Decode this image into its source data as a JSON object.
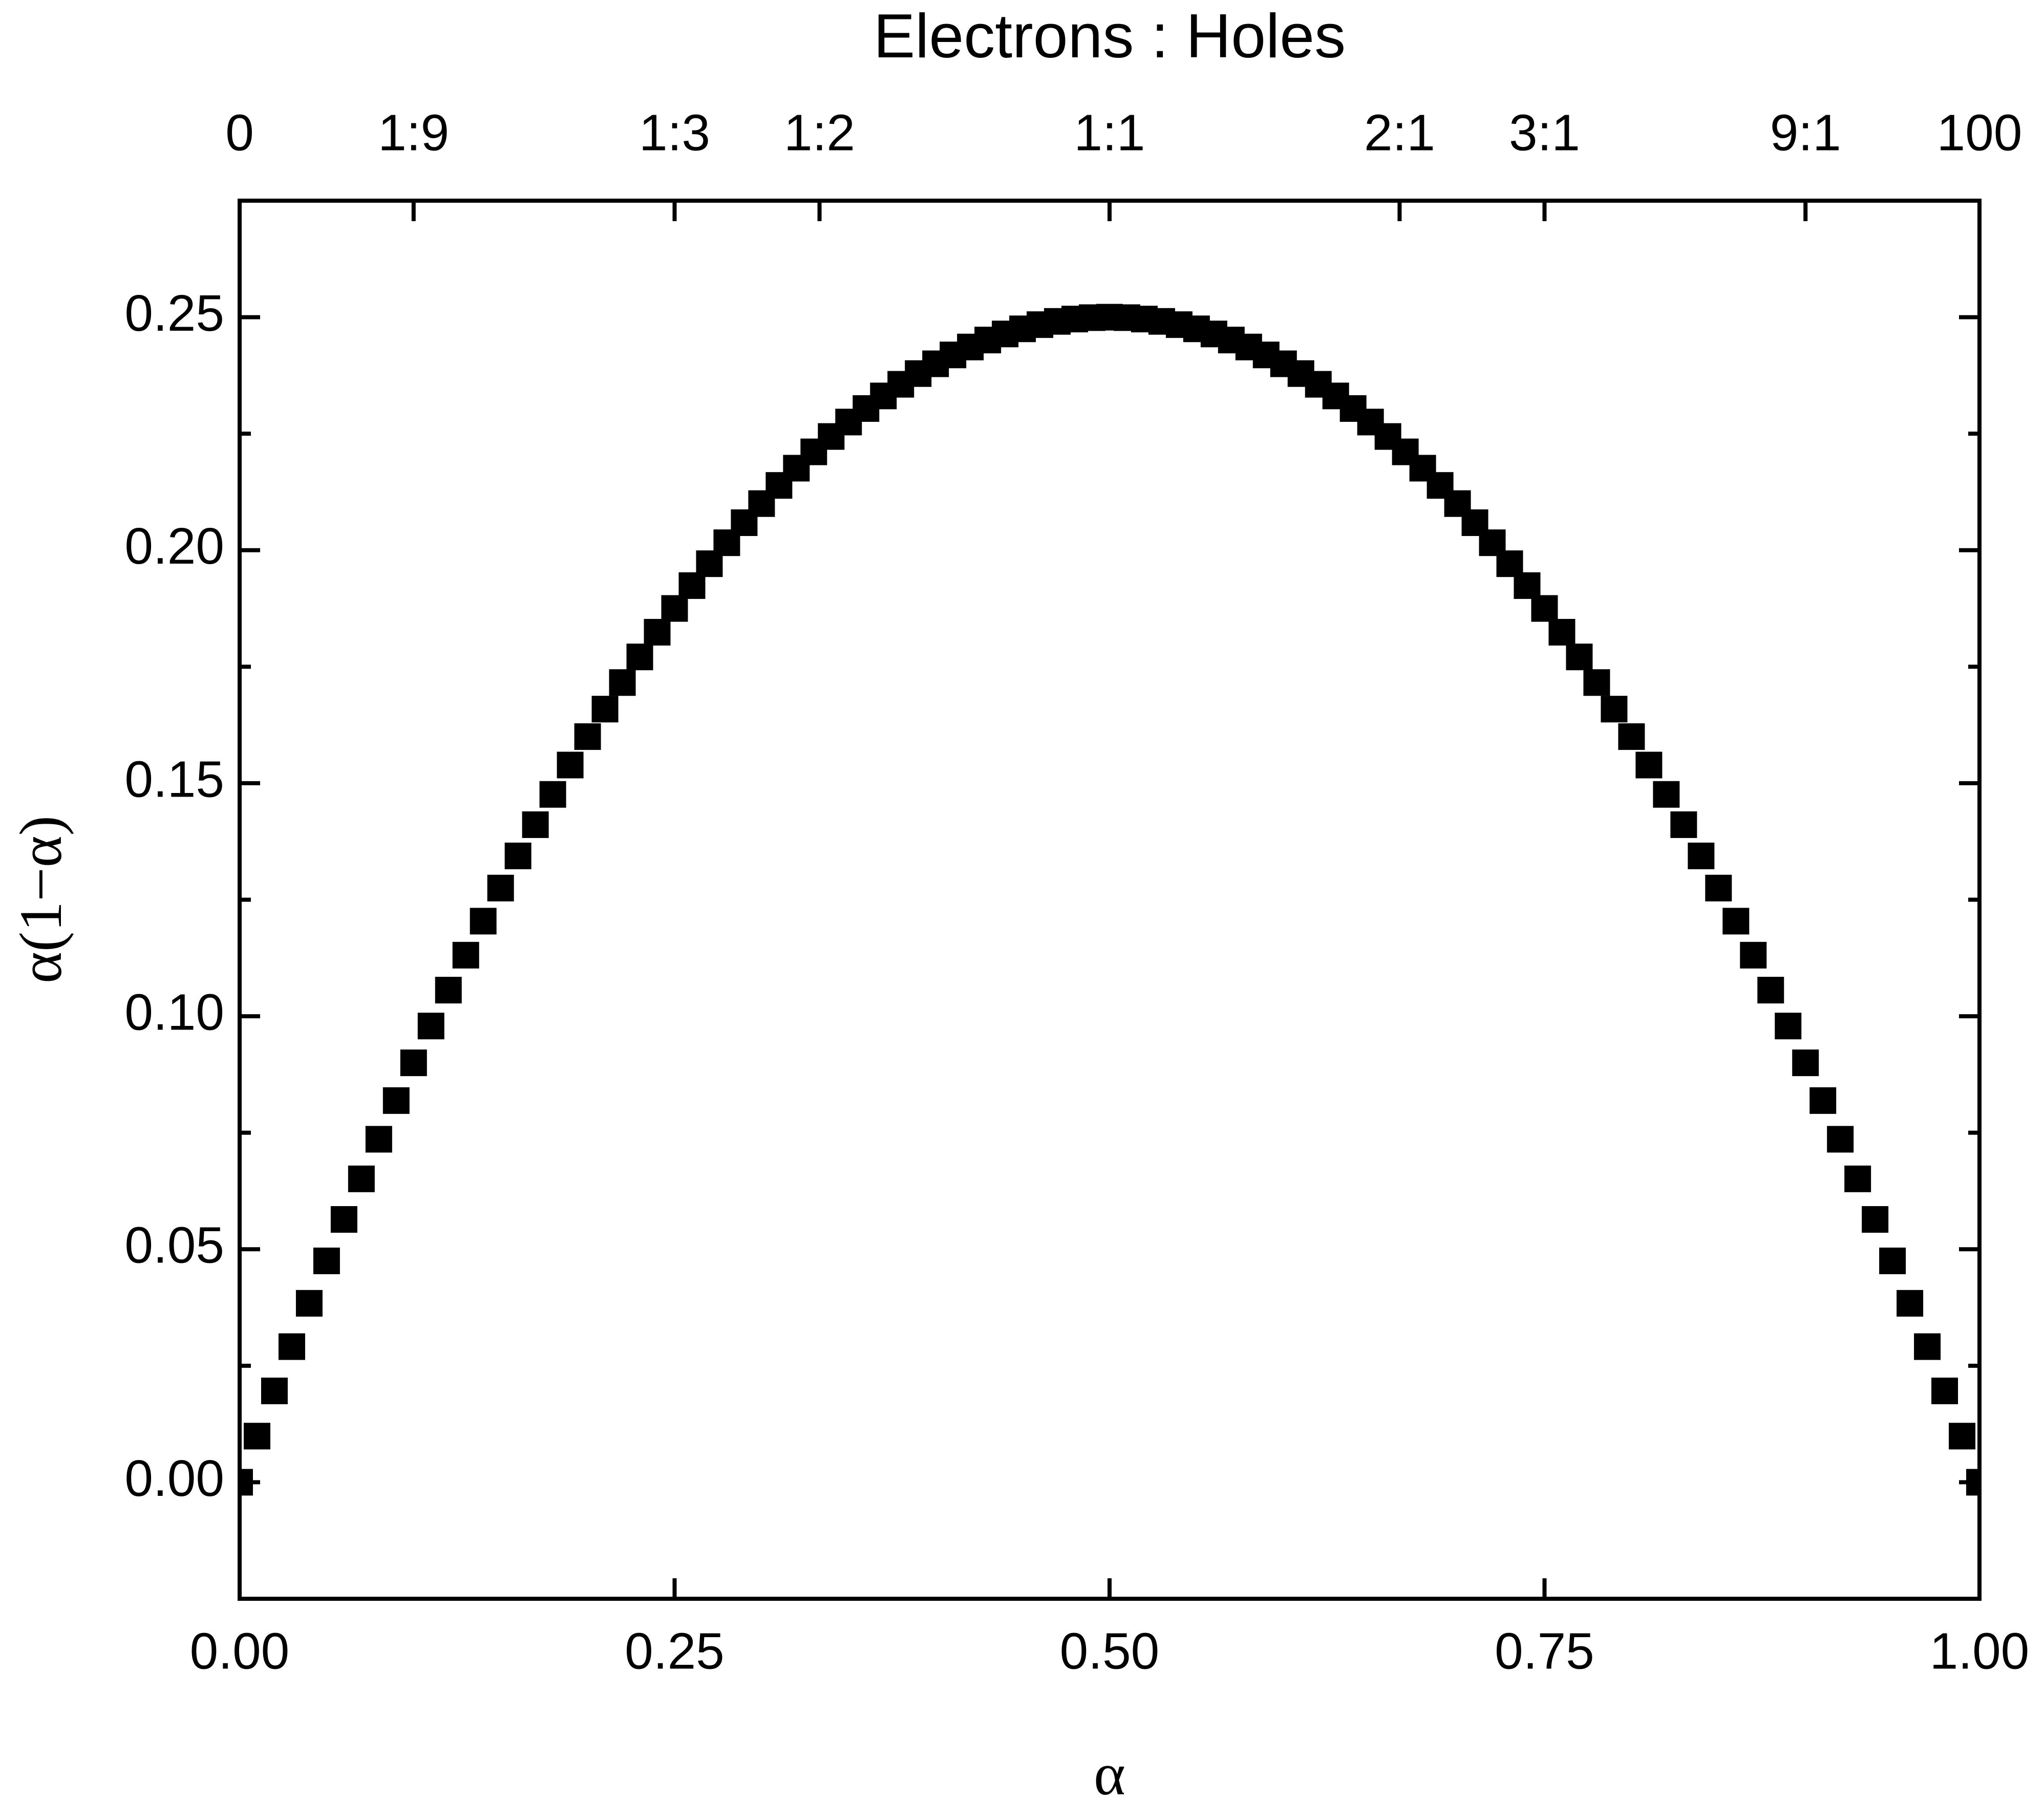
{
  "chart_data": {
    "type": "scatter",
    "x2label": "Electrons : Holes",
    "xlabel": "α",
    "ylabel": "α(1−α)",
    "marker": "square",
    "color": "#000000",
    "x": [
      0,
      0.01,
      0.02,
      0.03,
      0.04,
      0.05,
      0.06,
      0.07,
      0.08,
      0.09,
      0.1,
      0.11,
      0.12,
      0.13,
      0.14,
      0.15,
      0.16,
      0.17,
      0.18,
      0.19,
      0.2,
      0.21,
      0.22,
      0.23,
      0.24,
      0.25,
      0.26,
      0.27,
      0.28,
      0.29,
      0.3,
      0.31,
      0.32,
      0.33,
      0.34,
      0.35,
      0.36,
      0.37,
      0.38,
      0.39,
      0.4,
      0.41,
      0.42,
      0.43,
      0.44,
      0.45,
      0.46,
      0.47,
      0.48,
      0.49,
      0.5,
      0.51,
      0.52,
      0.53,
      0.54,
      0.55,
      0.56,
      0.57,
      0.58,
      0.59,
      0.6,
      0.61,
      0.62,
      0.63,
      0.64,
      0.65,
      0.66,
      0.67,
      0.68,
      0.69,
      0.7,
      0.71,
      0.72,
      0.73,
      0.74,
      0.75,
      0.76,
      0.77,
      0.78,
      0.79,
      0.8,
      0.81,
      0.82,
      0.83,
      0.84,
      0.85,
      0.86,
      0.87,
      0.88,
      0.89,
      0.9,
      0.91,
      0.92,
      0.93,
      0.94,
      0.95,
      0.96,
      0.97,
      0.98,
      0.99,
      1
    ],
    "values": [
      0,
      0.0099,
      0.0196,
      0.0291,
      0.0384,
      0.0475,
      0.0564,
      0.0651,
      0.0736,
      0.0819,
      0.09,
      0.0979,
      0.1056,
      0.1131,
      0.1204,
      0.1275,
      0.1344,
      0.1411,
      0.1476,
      0.1539,
      0.16,
      0.1659,
      0.1716,
      0.1771,
      0.1824,
      0.1875,
      0.1924,
      0.1971,
      0.2016,
      0.2059,
      0.21,
      0.2139,
      0.2176,
      0.2211,
      0.2244,
      0.2275,
      0.2304,
      0.2331,
      0.2356,
      0.2379,
      0.24,
      0.2419,
      0.2436,
      0.2451,
      0.2464,
      0.2475,
      0.2484,
      0.2491,
      0.2496,
      0.2499,
      0.25,
      0.2499,
      0.2496,
      0.2491,
      0.2484,
      0.2475,
      0.2464,
      0.2451,
      0.2436,
      0.2419,
      0.24,
      0.2379,
      0.2356,
      0.2331,
      0.2304,
      0.2275,
      0.2244,
      0.2211,
      0.2176,
      0.2139,
      0.21,
      0.2059,
      0.2016,
      0.1971,
      0.1924,
      0.1875,
      0.1824,
      0.1771,
      0.1716,
      0.1659,
      0.16,
      0.1539,
      0.1476,
      0.1411,
      0.1344,
      0.1275,
      0.1204,
      0.1131,
      0.1056,
      0.0979,
      0.09,
      0.0819,
      0.0736,
      0.0651,
      0.0564,
      0.0475,
      0.0384,
      0.0291,
      0.0196,
      0.0099,
      0
    ],
    "xlim": [
      0,
      1
    ],
    "xticks": [
      {
        "value": 0,
        "label": "0.00"
      },
      0.25,
      {
        "value": 0.5,
        "label": "0.50"
      },
      0.75,
      {
        "value": 1,
        "label": "1.00"
      }
    ],
    "x2lim": [
      0,
      1
    ],
    "x2ticks": [
      0,
      {
        "value": 0.1,
        "label": "1:9"
      },
      {
        "value": 0.25,
        "label": "1:3"
      },
      {
        "value": 0.3333,
        "label": "1:2"
      },
      {
        "value": 0.5,
        "label": "1:1"
      },
      {
        "value": 0.6667,
        "label": "2:1"
      },
      {
        "value": 0.75,
        "label": "3:1"
      },
      {
        "value": 0.9,
        "label": "9:1"
      },
      {
        "value": 1,
        "label": "100"
      }
    ],
    "ylim": [
      -0.025,
      0.275
    ],
    "yticks": [
      {
        "value": 0,
        "label": "0.00"
      },
      0.05,
      {
        "value": 0.1,
        "label": "0.10"
      },
      0.15,
      {
        "value": 0.2,
        "label": "0.20"
      },
      0.25
    ],
    "yminorticks": [
      -0.025,
      0.025,
      0.075,
      0.125,
      0.175,
      0.225,
      0.275
    ]
  }
}
